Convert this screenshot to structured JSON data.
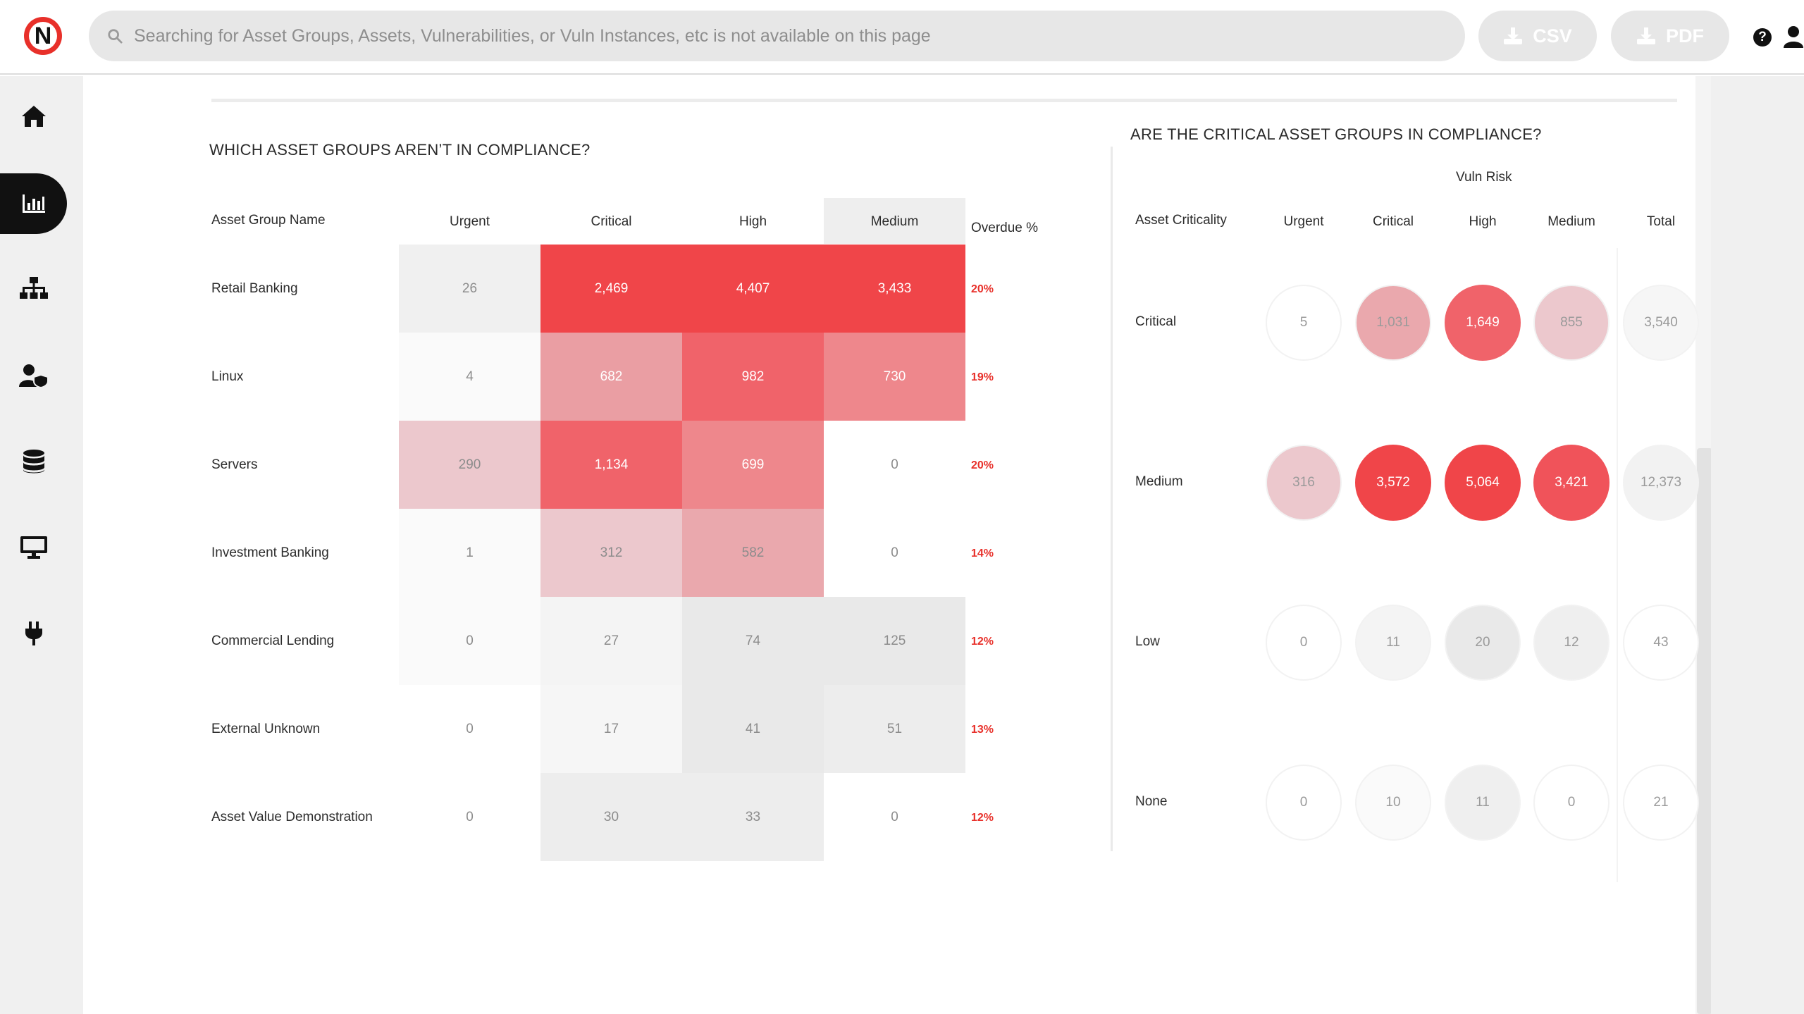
{
  "app": {
    "logo_letter": "N"
  },
  "search": {
    "placeholder": "Searching for Asset Groups, Assets, Vulnerabilities, or Vuln Instances, etc is not available on this page"
  },
  "toolbar": {
    "csv_label": "CSV",
    "pdf_label": "PDF",
    "help_glyph": "?"
  },
  "sidebar": {
    "items": [
      {
        "name": "home",
        "icon": "home-icon",
        "active": false
      },
      {
        "name": "reports",
        "icon": "bar-chart-icon",
        "active": true
      },
      {
        "name": "hierarchy",
        "icon": "sitemap-icon",
        "active": false
      },
      {
        "name": "users",
        "icon": "user-shield-icon",
        "active": false
      },
      {
        "name": "database",
        "icon": "database-icon",
        "active": false
      },
      {
        "name": "assets",
        "icon": "monitor-icon",
        "active": false
      },
      {
        "name": "integrations",
        "icon": "plug-icon",
        "active": false
      }
    ]
  },
  "left_panel": {
    "title": "WHICH ASSET GROUPS AREN’T IN COMPLIANCE?",
    "headers": {
      "name": "Asset Group Name",
      "urgent": "Urgent",
      "critical": "Critical",
      "high": "High",
      "medium": "Medium",
      "overdue": "Overdue %"
    },
    "rows": [
      {
        "name": "Retail Banking",
        "urgent": "26",
        "critical": "2,469",
        "high": "4,407",
        "medium": "3,433",
        "overdue": "20%"
      },
      {
        "name": "Linux",
        "urgent": "4",
        "critical": "682",
        "high": "982",
        "medium": "730",
        "overdue": "19%"
      },
      {
        "name": "Servers",
        "urgent": "290",
        "critical": "1,134",
        "high": "699",
        "medium": "0",
        "overdue": "20%"
      },
      {
        "name": "Investment Banking",
        "urgent": "1",
        "critical": "312",
        "high": "582",
        "medium": "0",
        "overdue": "14%"
      },
      {
        "name": "Commercial Lending",
        "urgent": "0",
        "critical": "27",
        "high": "74",
        "medium": "125",
        "overdue": "12%"
      },
      {
        "name": "External Unknown",
        "urgent": "0",
        "critical": "17",
        "high": "41",
        "medium": "51",
        "overdue": "13%"
      },
      {
        "name": "Asset Value Demonstration",
        "urgent": "0",
        "critical": "30",
        "high": "33",
        "medium": "0",
        "overdue": "12%"
      }
    ],
    "cell_colors": [
      [
        "#f0f0f0",
        "#f04549",
        "#f04549",
        "#f04549"
      ],
      [
        "#fafafa",
        "#ea9ea3",
        "#f0636a",
        "#ee878c"
      ],
      [
        "#ecc8cd",
        "#f0636a",
        "#ee878c",
        "#ffffff"
      ],
      [
        "#fafafa",
        "#ecc8cd",
        "#eaa8ad",
        "#ffffff"
      ],
      [
        "#fafafa",
        "#f4f4f4",
        "#e9e9e9",
        "#e9e9e9"
      ],
      [
        "#ffffff",
        "#f6f6f6",
        "#e9e9e9",
        "#ededed"
      ],
      [
        "#ffffff",
        "#ededed",
        "#ededed",
        "#ffffff"
      ]
    ],
    "medium_header_bg": "#eeeeee"
  },
  "right_panel": {
    "title": "ARE THE CRITICAL ASSET GROUPS IN COMPLIANCE?",
    "group_header": "Vuln Risk",
    "headers": {
      "criticality": "Asset Criticality",
      "urgent": "Urgent",
      "critical": "Critical",
      "high": "High",
      "medium": "Medium",
      "total": "Total"
    },
    "rows": [
      {
        "label": "Critical",
        "urgent": "5",
        "critical": "1,031",
        "high": "1,649",
        "medium": "855",
        "total": "3,540"
      },
      {
        "label": "Medium",
        "urgent": "316",
        "critical": "3,572",
        "high": "5,064",
        "medium": "3,421",
        "total": "12,373"
      },
      {
        "label": "Low",
        "urgent": "0",
        "critical": "11",
        "high": "20",
        "medium": "12",
        "total": "43"
      },
      {
        "label": "None",
        "urgent": "0",
        "critical": "10",
        "high": "11",
        "medium": "0",
        "total": "21"
      }
    ],
    "circle_colors": [
      [
        "#ffffff",
        "#eaa8ad",
        "#f0636a",
        "#ecc8cd",
        "#f6f6f6"
      ],
      [
        "#ecc8cd",
        "#f04549",
        "#f04549",
        "#f0535a",
        "#f2f2f2"
      ],
      [
        "#ffffff",
        "#f4f4f4",
        "#e9e9e9",
        "#efefef",
        "#ffffff"
      ],
      [
        "#ffffff",
        "#fafafa",
        "#efefef",
        "#ffffff",
        "#ffffff"
      ]
    ]
  },
  "colors": {
    "accent_red": "#e8302a",
    "sidebar_bg": "#f0f0f0",
    "active_nav": "#111111"
  }
}
